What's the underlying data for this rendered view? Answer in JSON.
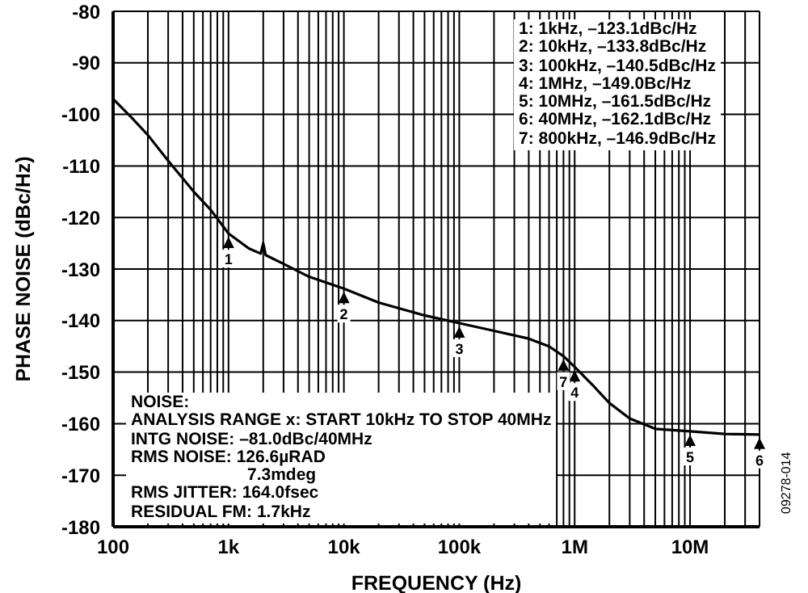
{
  "chart_data": {
    "type": "line",
    "xlabel": "FREQUENCY (Hz)",
    "ylabel": "PHASE NOISE (dBc/Hz)",
    "x": [
      100,
      150,
      200,
      300,
      500,
      700,
      1000,
      1500,
      1900,
      2000,
      2100,
      3000,
      5000,
      10000,
      20000,
      50000,
      100000,
      200000,
      400000,
      600000,
      800000,
      1000000,
      1500000,
      2000000,
      3000000,
      5000000,
      10000000,
      20000000,
      40000000
    ],
    "series": [
      {
        "color": "#000000",
        "values": [
          -97,
          -101,
          -104,
          -109,
          -115,
          -118.5,
          -123.1,
          -126,
          -127,
          -125,
          -127.3,
          -129,
          -131.5,
          -133.8,
          -136.5,
          -139,
          -140.5,
          -142,
          -143.5,
          -145,
          -146.9,
          -149,
          -153,
          -156,
          -159,
          -161,
          -161.5,
          -162,
          -162.1
        ]
      }
    ],
    "log": "x",
    "xlim": [
      100,
      40000000
    ],
    "ylim": [
      -180,
      -80
    ],
    "xticks": [
      {
        "value": 100,
        "label": "100"
      },
      {
        "value": 200,
        "label": null
      },
      {
        "value": 300,
        "label": null
      },
      {
        "value": 400,
        "label": null
      },
      {
        "value": 500,
        "label": null
      },
      {
        "value": 600,
        "label": null
      },
      {
        "value": 700,
        "label": null
      },
      {
        "value": 800,
        "label": null
      },
      {
        "value": 900,
        "label": null
      },
      {
        "value": 1000,
        "label": "1k"
      },
      {
        "value": 2000,
        "label": null
      },
      {
        "value": 3000,
        "label": null
      },
      {
        "value": 4000,
        "label": null
      },
      {
        "value": 5000,
        "label": null
      },
      {
        "value": 6000,
        "label": null
      },
      {
        "value": 7000,
        "label": null
      },
      {
        "value": 8000,
        "label": null
      },
      {
        "value": 9000,
        "label": null
      },
      {
        "value": 10000,
        "label": "10k"
      },
      {
        "value": 20000,
        "label": null
      },
      {
        "value": 30000,
        "label": null
      },
      {
        "value": 40000,
        "label": null
      },
      {
        "value": 50000,
        "label": null
      },
      {
        "value": 60000,
        "label": null
      },
      {
        "value": 70000,
        "label": null
      },
      {
        "value": 80000,
        "label": null
      },
      {
        "value": 90000,
        "label": null
      },
      {
        "value": 100000,
        "label": "100k"
      },
      {
        "value": 200000,
        "label": null
      },
      {
        "value": 300000,
        "label": null
      },
      {
        "value": 400000,
        "label": null
      },
      {
        "value": 500000,
        "label": null
      },
      {
        "value": 600000,
        "label": null
      },
      {
        "value": 700000,
        "label": null
      },
      {
        "value": 800000,
        "label": null
      },
      {
        "value": 900000,
        "label": null
      },
      {
        "value": 1000000,
        "label": "1M"
      },
      {
        "value": 2000000,
        "label": null
      },
      {
        "value": 3000000,
        "label": null
      },
      {
        "value": 4000000,
        "label": null
      },
      {
        "value": 5000000,
        "label": null
      },
      {
        "value": 6000000,
        "label": null
      },
      {
        "value": 7000000,
        "label": null
      },
      {
        "value": 8000000,
        "label": null
      },
      {
        "value": 9000000,
        "label": null
      },
      {
        "value": 10000000,
        "label": "10M"
      },
      {
        "value": 20000000,
        "label": null
      },
      {
        "value": 30000000,
        "label": null
      }
    ],
    "yticks": [
      -180,
      -170,
      -160,
      -150,
      -140,
      -130,
      -120,
      -110,
      -100,
      -90,
      -80
    ],
    "grid": true,
    "marker": "none",
    "line_style": "solid",
    "annotations": [
      "1: 1kHz, –123.1dBc/Hz",
      "2: 10kHz, –133.8dBc/Hz",
      "3: 100kHz, –140.5dBc/Hz",
      "4: 1MHz, –149.0Bc/Hz",
      "5: 10MHz, –161.5dBc/Hz",
      "6: 40MHz, –162.1dBc/Hz",
      "7: 800kHz, –146.9dBc/Hz",
      "NOISE:",
      "ANALYSIS RANGE x: START 10kHz TO STOP 40MHz",
      "INTG NOISE: –81.0dBc/40MHz",
      "RMS NOISE: 126.6µRAD",
      "7.3mdeg",
      "RMS JITTER: 164.0fsec",
      "RESIDUAL FM: 1.7kHz",
      "09278-014",
      {
        "text": "1",
        "x": 1000,
        "y": -123.1
      },
      {
        "text": "2",
        "x": 10000,
        "y": -133.8
      },
      {
        "text": "3",
        "x": 100000,
        "y": -140.5
      },
      {
        "text": "4",
        "x": 1000000,
        "y": -149
      },
      {
        "text": "5",
        "x": 10000000,
        "y": -161.5
      },
      {
        "text": "6",
        "x": 40000000,
        "y": -162.1
      },
      {
        "text": "7",
        "x": 800000,
        "y": -146.9
      }
    ]
  }
}
